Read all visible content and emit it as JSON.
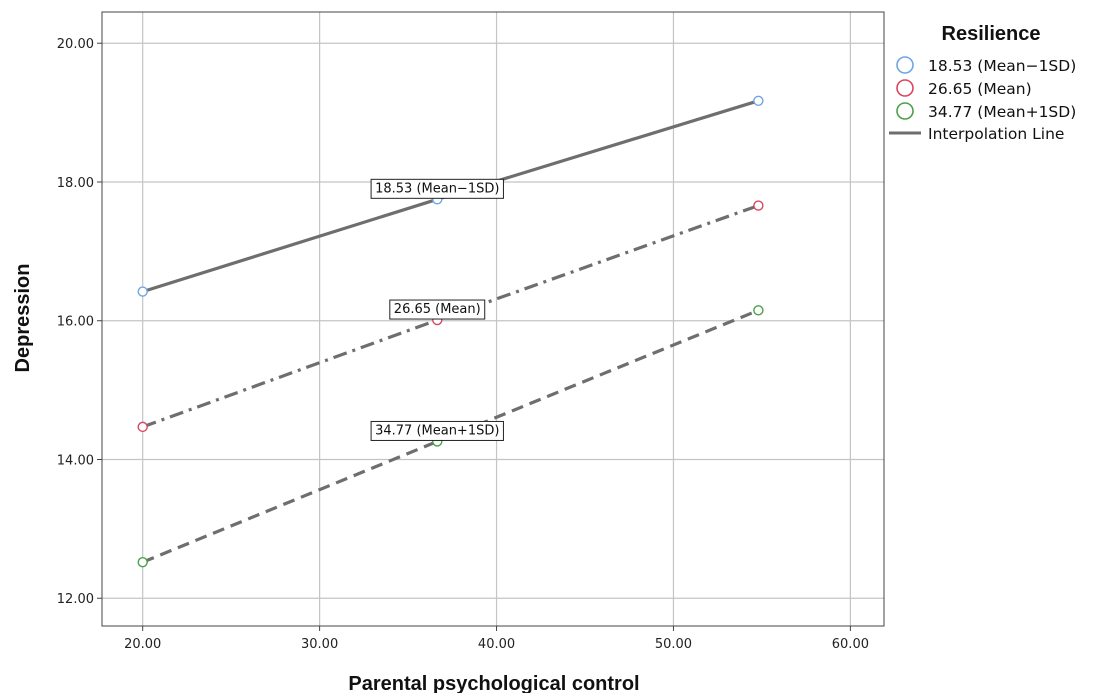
{
  "chart_data": {
    "type": "line",
    "xlabel": "Parental psychological control",
    "ylabel": "Depression",
    "xlim": [
      17.7,
      61.9
    ],
    "ylim": [
      11.6,
      20.45
    ],
    "xticks": [
      20,
      30,
      40,
      50,
      60
    ],
    "xtick_labels": [
      "20.00",
      "30.00",
      "40.00",
      "50.00",
      "60.00"
    ],
    "yticks": [
      12,
      14,
      16,
      18,
      20
    ],
    "ytick_labels": [
      "12.00",
      "14.00",
      "16.00",
      "18.00",
      "20.00"
    ],
    "grid": true,
    "legend": {
      "title": "Resilience",
      "placement": "right",
      "line_label": "Interpolation Line"
    },
    "series": [
      {
        "name": "18.53 (Mean−1SD)",
        "x": [
          20.0,
          36.65,
          54.8
        ],
        "y": [
          16.42,
          17.75,
          19.17
        ],
        "marker_color": "#6ea6e4",
        "line_style": "solid",
        "annotation": "18.53 (Mean−1SD)"
      },
      {
        "name": "26.65 (Mean)",
        "x": [
          20.0,
          36.65,
          54.8
        ],
        "y": [
          14.47,
          16.01,
          17.66
        ],
        "marker_color": "#d9465f",
        "line_style": "dashdot",
        "annotation": "26.65 (Mean)"
      },
      {
        "name": "34.77 (Mean+1SD)",
        "x": [
          20.0,
          36.65,
          54.8
        ],
        "y": [
          12.52,
          14.26,
          16.15
        ],
        "marker_color": "#4aa04a",
        "line_style": "dashed",
        "annotation": "34.77 (Mean+1SD)"
      }
    ],
    "line_color": "#6e6e6e"
  }
}
